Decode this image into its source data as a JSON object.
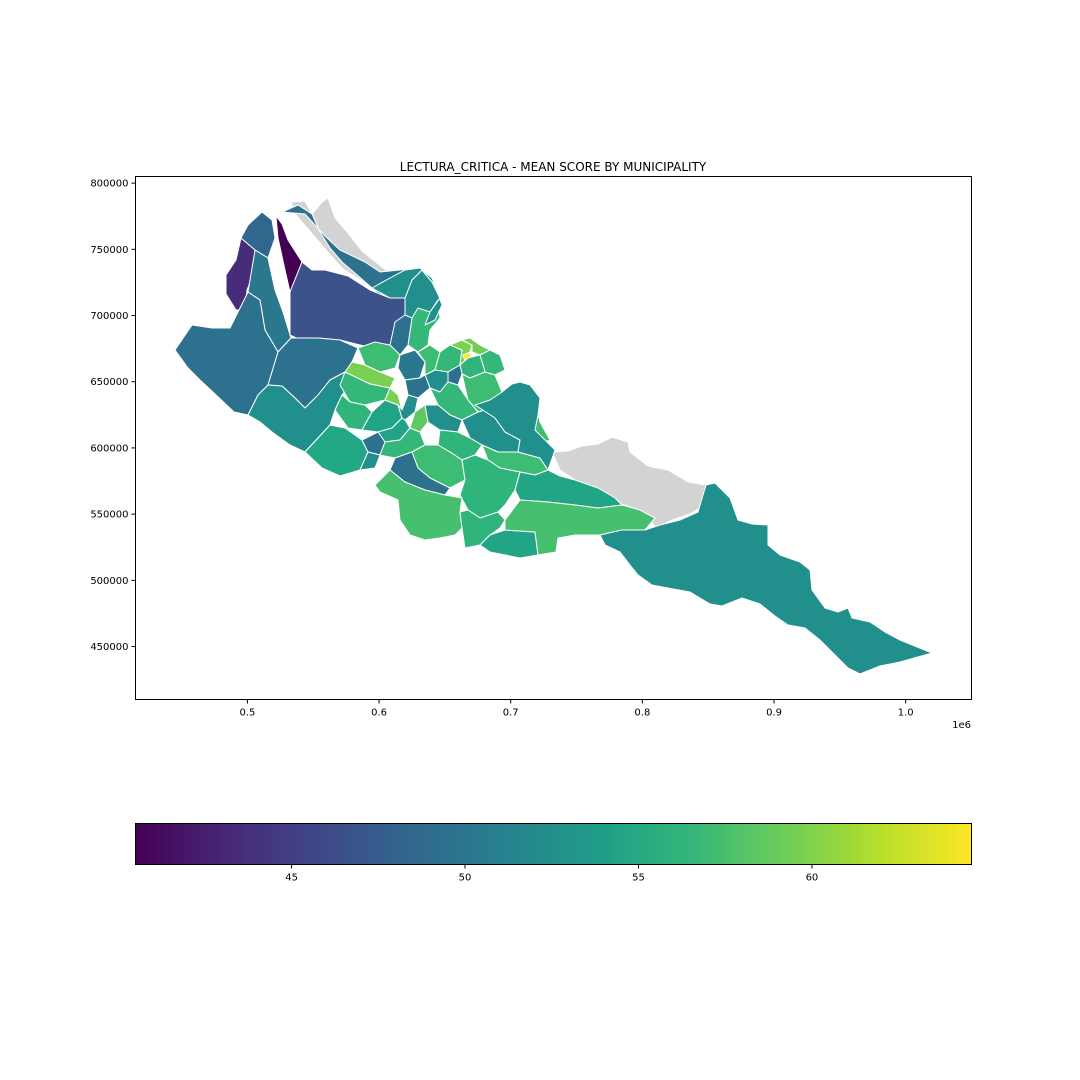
{
  "chart_data": {
    "type": "choropleth-map",
    "title": "LECTURA_CRITICA - MEAN SCORE BY MUNICIPALITY",
    "x_axis": {
      "ticks": [
        0.5,
        0.6,
        0.7,
        0.8,
        0.9,
        1.0
      ],
      "tick_labels": [
        "0.5",
        "0.6",
        "0.7",
        "0.8",
        "0.9",
        "1.0"
      ],
      "offset_label": "1e6",
      "range": [
        415000,
        1050000
      ]
    },
    "y_axis": {
      "ticks": [
        450000,
        500000,
        550000,
        600000,
        650000,
        700000,
        750000,
        800000
      ],
      "tick_labels": [
        "450000",
        "500000",
        "550000",
        "600000",
        "650000",
        "700000",
        "750000",
        "800000"
      ],
      "range": [
        410000,
        805000
      ]
    },
    "colorbar": {
      "colormap": "viridis",
      "range": [
        40.5,
        64.6
      ],
      "ticks": [
        45,
        50,
        55,
        60
      ],
      "tick_labels": [
        "45",
        "50",
        "55",
        "60"
      ],
      "orientation": "horizontal"
    },
    "missing_color": "#d3d3d3",
    "grid": false
  }
}
